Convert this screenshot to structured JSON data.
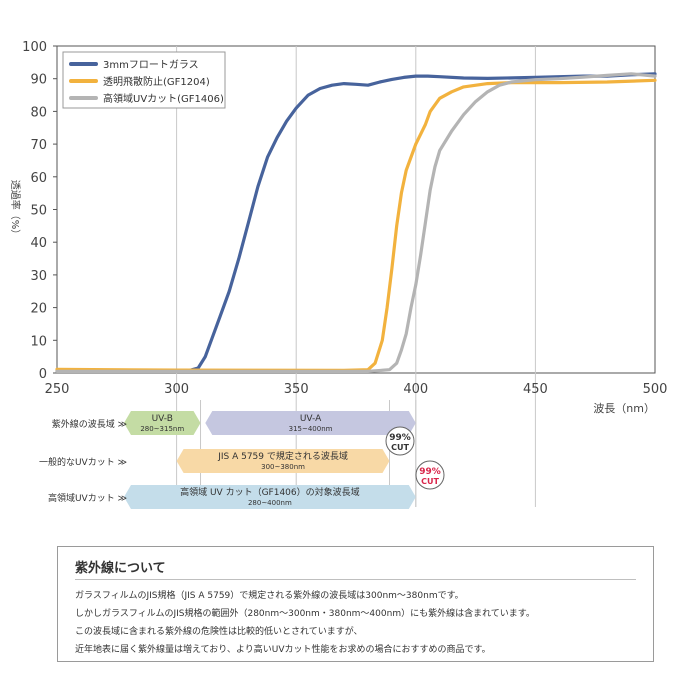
{
  "chart_data": {
    "type": "line",
    "xlabel": "波長（nm）",
    "ylabel": "透過率（%）",
    "xlim": [
      250,
      500
    ],
    "ylim": [
      0,
      100
    ],
    "xticks": [
      250,
      300,
      350,
      400,
      450,
      500
    ],
    "yticks": [
      0,
      10,
      20,
      30,
      40,
      50,
      60,
      70,
      80,
      90,
      100
    ],
    "grid": "vertical",
    "legend": "top-left",
    "series": [
      {
        "name": "3mmフロートガラス",
        "color": "#47639c",
        "points": [
          [
            250,
            0.6
          ],
          [
            305,
            0.7
          ],
          [
            309,
            1.5
          ],
          [
            312,
            5
          ],
          [
            315,
            11
          ],
          [
            318,
            17
          ],
          [
            322,
            25
          ],
          [
            326,
            35
          ],
          [
            330,
            46
          ],
          [
            334,
            57
          ],
          [
            338,
            66
          ],
          [
            342,
            72
          ],
          [
            346,
            77
          ],
          [
            350,
            81
          ],
          [
            355,
            85
          ],
          [
            360,
            87
          ],
          [
            365,
            88
          ],
          [
            370,
            88.5
          ],
          [
            375,
            88.3
          ],
          [
            380,
            88
          ],
          [
            385,
            89
          ],
          [
            390,
            89.8
          ],
          [
            395,
            90.4
          ],
          [
            400,
            90.8
          ],
          [
            405,
            90.8
          ],
          [
            410,
            90.6
          ],
          [
            420,
            90.2
          ],
          [
            430,
            90.1
          ],
          [
            450,
            90.4
          ],
          [
            470,
            90.8
          ],
          [
            480,
            90.8
          ],
          [
            490,
            91.2
          ],
          [
            500,
            91.5
          ]
        ]
      },
      {
        "name": "透明飛散防止(GF1204)",
        "color": "#f2b23e",
        "points": [
          [
            250,
            1.1
          ],
          [
            300,
            0.9
          ],
          [
            370,
            0.8
          ],
          [
            380,
            1
          ],
          [
            383,
            3
          ],
          [
            386,
            10
          ],
          [
            388,
            20
          ],
          [
            390,
            32
          ],
          [
            392,
            45
          ],
          [
            394,
            55
          ],
          [
            396,
            62
          ],
          [
            398,
            66
          ],
          [
            400,
            70
          ],
          [
            402,
            73
          ],
          [
            404,
            76
          ],
          [
            406,
            80
          ],
          [
            410,
            84
          ],
          [
            415,
            86
          ],
          [
            420,
            87.5
          ],
          [
            430,
            88.5
          ],
          [
            440,
            88.8
          ],
          [
            450,
            88.8
          ],
          [
            460,
            88.8
          ],
          [
            480,
            89
          ],
          [
            500,
            89.5
          ]
        ]
      },
      {
        "name": "高領域UVカット(GF1406)",
        "color": "#b4b4b4",
        "points": [
          [
            250,
            0.5
          ],
          [
            380,
            0.5
          ],
          [
            389,
            1
          ],
          [
            392,
            3
          ],
          [
            394,
            7
          ],
          [
            396,
            12
          ],
          [
            398,
            20
          ],
          [
            400,
            27
          ],
          [
            402,
            36
          ],
          [
            404,
            46
          ],
          [
            406,
            56
          ],
          [
            408,
            63
          ],
          [
            410,
            68
          ],
          [
            415,
            74
          ],
          [
            420,
            79
          ],
          [
            425,
            83
          ],
          [
            430,
            86
          ],
          [
            435,
            88
          ],
          [
            440,
            89
          ],
          [
            450,
            89.7
          ],
          [
            460,
            90
          ],
          [
            470,
            90.5
          ],
          [
            480,
            91
          ],
          [
            490,
            91.5
          ],
          [
            500,
            90.8
          ]
        ]
      }
    ],
    "bands": [
      {
        "row_label": "紫外線の波長域 ≫",
        "label": "UV-B",
        "sublabel": "280~315nm",
        "from": 278,
        "to": 310,
        "color": "#c4dca4"
      },
      {
        "row_label": "",
        "label": "UV-A",
        "sublabel": "315~400nm",
        "from": 312,
        "to": 400,
        "color": "#c5c7e0"
      },
      {
        "row_label": "一般的なUVカット ≫",
        "label": "JIS A 5759 で規定される波長域",
        "sublabel": "300~380nm",
        "from": 300,
        "to": 389,
        "color": "#f8d9a6",
        "badge": {
          "top": "99%",
          "bottom": "CUT",
          "color": "#333333"
        }
      },
      {
        "row_label": "高領域UVカット ≫",
        "label": "高領域 UV カット（GF1406）の対象波長域",
        "sublabel": "280~400nm",
        "from": 278,
        "to": 400,
        "color": "#c4ddea",
        "badge": {
          "top": "99%",
          "bottom": "CUT",
          "color": "#d9254a"
        }
      }
    ]
  },
  "info_box": {
    "title": "紫外線について",
    "lines": [
      "ガラスフィルムのJIS規格（JIS A 5759）で規定される紫外線の波長域は300nm〜380nmです。",
      "しかしガラスフィルムのJIS規格の範囲外（280nm〜300nm・380nm〜400nm）にも紫外線は含まれています。",
      "この波長域に含まれる紫外線の危険性は比較的低いとされていますが、",
      "近年地表に届く紫外線量は増えており、より高いUVカット性能をお求めの場合におすすめの商品です。"
    ]
  }
}
